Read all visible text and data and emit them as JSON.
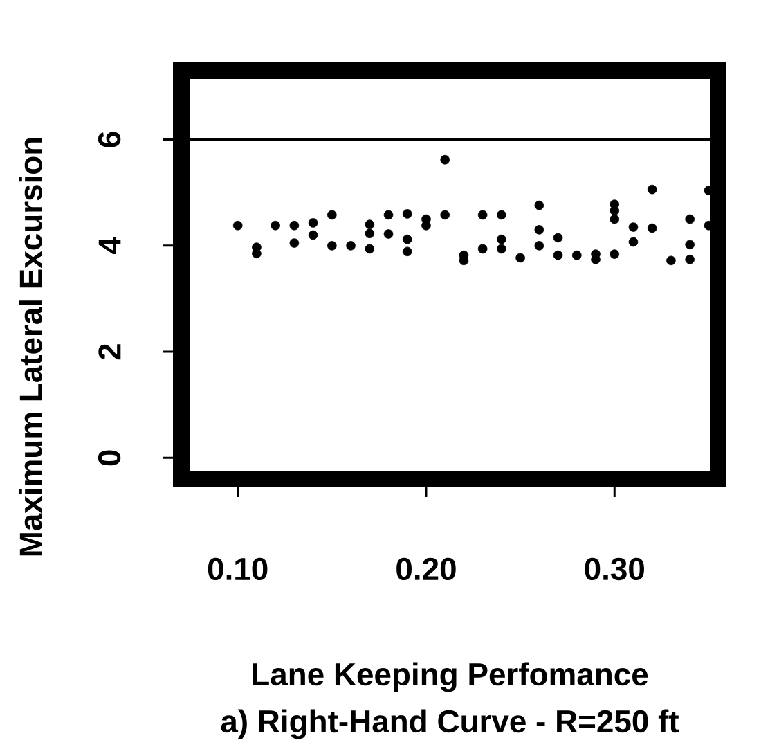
{
  "chart_data": {
    "type": "scatter",
    "title": "a) Right-Hand Curve - R=250 ft",
    "xlabel": "Lane Keeping Perfomance",
    "ylabel": "Maximum Lateral Excursion",
    "xlim": [
      0.07,
      0.355
    ],
    "ylim": [
      -0.4,
      7.3
    ],
    "xticks": [
      {
        "value": 0.1,
        "label": "0.10"
      },
      {
        "value": 0.2,
        "label": "0.20"
      },
      {
        "value": 0.3,
        "label": "0.30"
      }
    ],
    "yticks": [
      0,
      2,
      4,
      6
    ],
    "marker": "circle",
    "grid": false,
    "ref_lines": [
      {
        "axis": "y",
        "value": 6,
        "color": "#000000",
        "line_style": "solid"
      }
    ],
    "series": [
      {
        "color": "#000000",
        "x": [
          0.1,
          0.11,
          0.11,
          0.12,
          0.13,
          0.13,
          0.14,
          0.14,
          0.15,
          0.15,
          0.16,
          0.17,
          0.17,
          0.17,
          0.18,
          0.18,
          0.19,
          0.19,
          0.19,
          0.2,
          0.2,
          0.21,
          0.21,
          0.22,
          0.22,
          0.23,
          0.23,
          0.24,
          0.24,
          0.24,
          0.25,
          0.26,
          0.26,
          0.26,
          0.27,
          0.27,
          0.28,
          0.29,
          0.29,
          0.3,
          0.3,
          0.3,
          0.3,
          0.31,
          0.31,
          0.32,
          0.32,
          0.33,
          0.34,
          0.34,
          0.34,
          0.35,
          0.35
        ],
        "values": [
          4.38,
          3.97,
          3.85,
          4.38,
          4.38,
          4.05,
          4.43,
          4.2,
          4.58,
          4.0,
          4.0,
          4.4,
          4.23,
          3.94,
          4.58,
          4.22,
          4.6,
          4.12,
          3.89,
          4.5,
          4.38,
          5.62,
          4.58,
          3.82,
          3.72,
          4.58,
          3.94,
          4.58,
          4.12,
          3.94,
          3.77,
          4.76,
          4.3,
          4.0,
          4.15,
          3.82,
          3.82,
          3.84,
          3.74,
          4.78,
          4.66,
          4.5,
          3.84,
          4.35,
          4.07,
          5.06,
          4.33,
          3.72,
          4.5,
          4.02,
          3.74,
          5.04,
          4.38
        ]
      }
    ]
  }
}
